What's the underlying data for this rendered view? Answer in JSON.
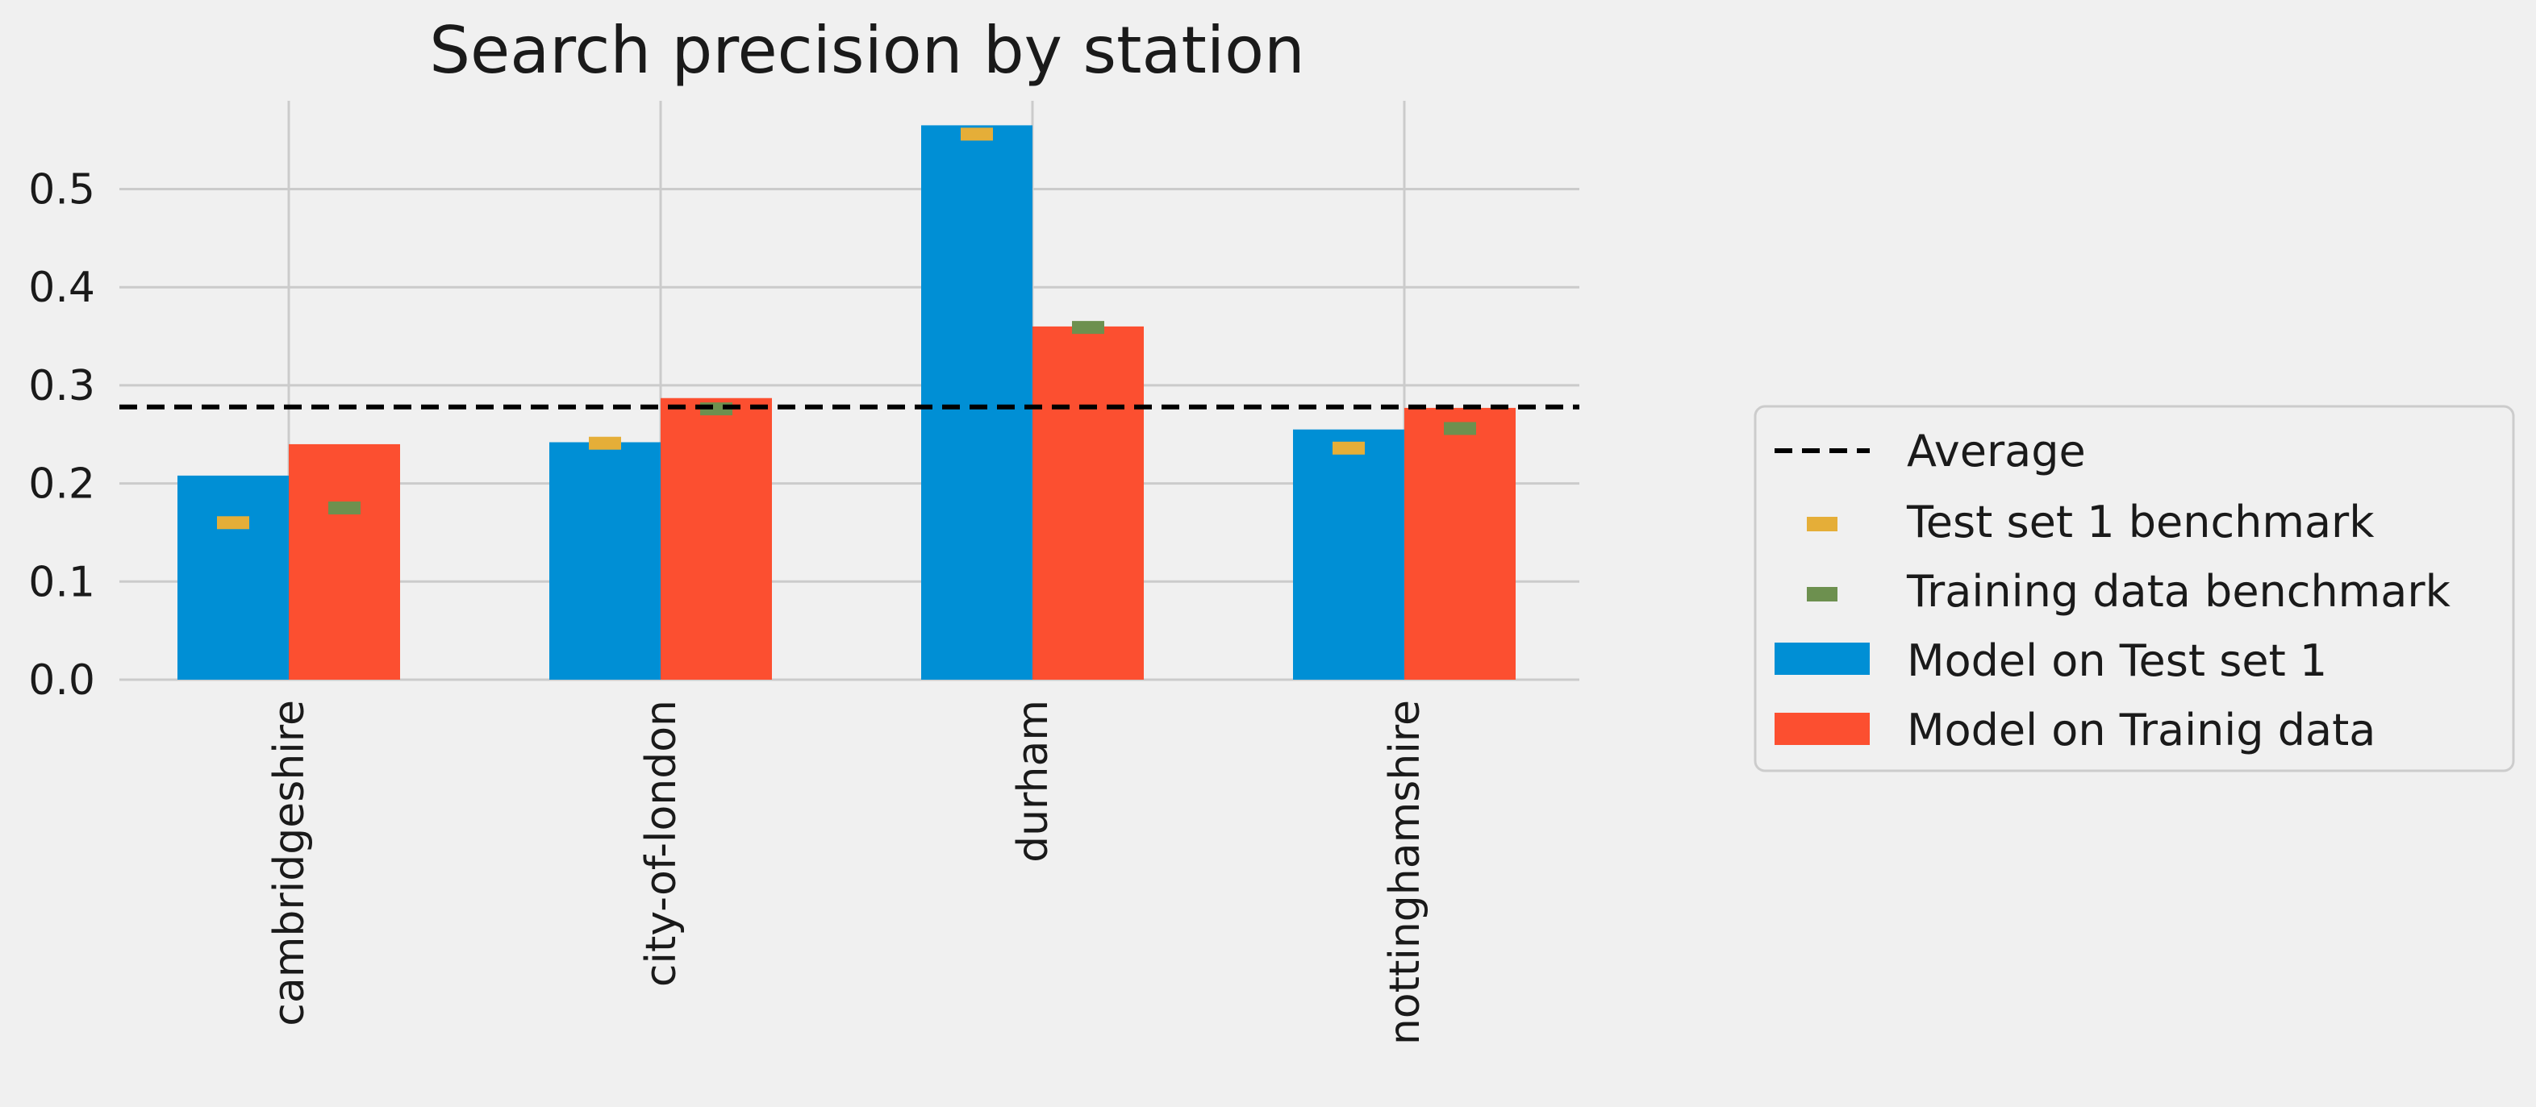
{
  "chart_data": {
    "type": "bar",
    "title": "Search precision by station",
    "xlabel": "",
    "ylabel": "",
    "categories": [
      "cambridgeshire",
      "city-of-london",
      "durham",
      "nottinghamshire"
    ],
    "series": [
      {
        "name": "Model on Test set 1",
        "values": [
          0.208,
          0.242,
          0.565,
          0.255
        ],
        "color": "#008fd5"
      },
      {
        "name": "Model on Trainig data",
        "values": [
          0.24,
          0.287,
          0.36,
          0.277
        ],
        "color": "#fc4f30"
      }
    ],
    "benchmarks": [
      {
        "name": "Test set 1 benchmark",
        "values": [
          0.16,
          0.241,
          0.556,
          0.236
        ],
        "color": "#e5ae38"
      },
      {
        "name": "Training data benchmark",
        "values": [
          0.175,
          0.276,
          0.359,
          0.256
        ],
        "color": "#6d904f"
      }
    ],
    "average": {
      "name": "Average",
      "value": 0.278,
      "color": "#000000"
    },
    "yticks": [
      "0.0",
      "0.1",
      "0.2",
      "0.3",
      "0.4",
      "0.5"
    ],
    "ylim": [
      0,
      0.59
    ],
    "grid": true,
    "legend_position": "right"
  }
}
